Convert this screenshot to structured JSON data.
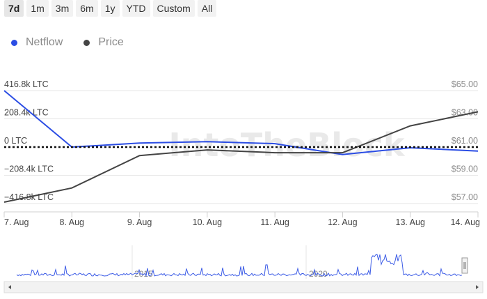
{
  "range_buttons": [
    "7d",
    "1m",
    "3m",
    "6m",
    "1y",
    "YTD",
    "Custom",
    "All"
  ],
  "active_range": "7d",
  "legend": [
    {
      "label": "Netflow",
      "color": "#2b4de4"
    },
    {
      "label": "Price",
      "color": "#444444"
    }
  ],
  "watermark": "IntoTheBlock",
  "chart_data": {
    "type": "line",
    "x": [
      "7. Aug",
      "8. Aug",
      "9. Aug",
      "10. Aug",
      "11. Aug",
      "12. Aug",
      "13. Aug",
      "14. Aug"
    ],
    "left_axis": {
      "ticks": [
        416.8,
        208.4,
        0,
        -208.4,
        -416.8
      ],
      "tick_labels": [
        "416.8k LTC",
        "208.4k LTC",
        "0 LTC",
        "−208.4k LTC",
        "−416.8k LTC"
      ],
      "range": [
        -416.8,
        416.8
      ],
      "unit": "k LTC"
    },
    "right_axis": {
      "ticks": [
        65,
        63,
        61,
        59,
        57
      ],
      "tick_labels": [
        "$65.00",
        "$63.00",
        "$61.00",
        "$59.00",
        "$57.00"
      ],
      "range": [
        57,
        65
      ]
    },
    "series": [
      {
        "name": "Netflow",
        "color": "#2b4de4",
        "axis": "left",
        "values": [
          416.8,
          0,
          30,
          40,
          25,
          -55,
          -5,
          -30
        ]
      },
      {
        "name": "Price",
        "color": "#444444",
        "axis": "right",
        "values": [
          57.1,
          58.1,
          60.4,
          60.8,
          60.6,
          60.6,
          62.5,
          63.5
        ]
      }
    ],
    "zero_line": "dotted",
    "grid": "horizontal"
  },
  "navigator": {
    "labels": [
      "2015",
      "2020"
    ]
  }
}
